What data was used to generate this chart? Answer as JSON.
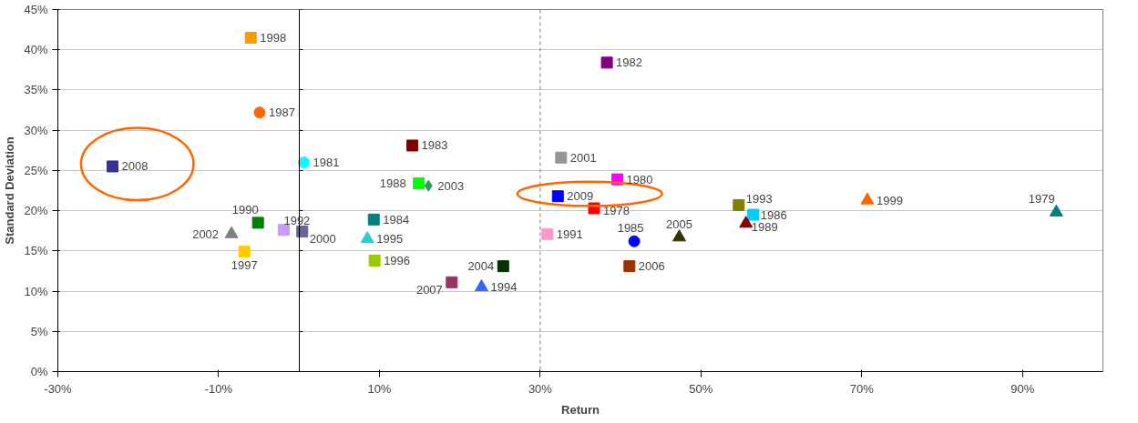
{
  "chart_data": {
    "type": "scatter",
    "xlabel": "Return",
    "ylabel": "Standard Deviation",
    "xlim": [
      -30,
      100
    ],
    "xticks": [
      {
        "value": -30,
        "label": "-30%"
      },
      {
        "value": -10,
        "label": "-10%"
      },
      {
        "value": 10,
        "label": "10%"
      },
      {
        "value": 30,
        "label": "30%"
      },
      {
        "value": 50,
        "label": "50%"
      },
      {
        "value": 70,
        "label": "70%"
      },
      {
        "value": 90,
        "label": "90%"
      }
    ],
    "ylim": [
      0,
      45
    ],
    "yticks": [
      {
        "value": 0,
        "label": "0%"
      },
      {
        "value": 5,
        "label": "5%"
      },
      {
        "value": 10,
        "label": "10%"
      },
      {
        "value": 15,
        "label": "15%"
      },
      {
        "value": 20,
        "label": "20%"
      },
      {
        "value": 25,
        "label": "25%"
      },
      {
        "value": 30,
        "label": "30%"
      },
      {
        "value": 35,
        "label": "35%"
      },
      {
        "value": 40,
        "label": "40%"
      },
      {
        "value": 45,
        "label": "45%"
      }
    ],
    "grid": "y",
    "ref_lines": [
      {
        "axis": "x",
        "value": 30,
        "color": "#808080",
        "line_style": "dashed"
      }
    ],
    "series": [
      {
        "name": "1998",
        "color": "#ff9900",
        "marker": "square",
        "x": [
          -6.0
        ],
        "values": [
          41.5
        ]
      },
      {
        "name": "1987",
        "color": "#ff6600",
        "marker": "circle",
        "x": [
          -4.9
        ],
        "values": [
          32.2
        ]
      },
      {
        "name": "2008",
        "color": "#333399",
        "marker": "square",
        "x": [
          -23.2
        ],
        "values": [
          25.5
        ]
      },
      {
        "name": "1981",
        "color": "#00ffff",
        "marker": "circle",
        "x": [
          0.6
        ],
        "values": [
          26.0
        ]
      },
      {
        "name": "1990",
        "color": "#008000",
        "marker": "square",
        "x": [
          -5.1
        ],
        "values": [
          18.5
        ]
      },
      {
        "name": "2002",
        "color": "#808080",
        "marker": "triangle",
        "x": [
          -8.4
        ],
        "values": [
          17.1
        ]
      },
      {
        "name": "1997",
        "color": "#ffcc00",
        "marker": "square",
        "x": [
          -6.8
        ],
        "values": [
          14.9
        ]
      },
      {
        "name": "1992",
        "color": "#cc99ff",
        "marker": "square",
        "x": [
          -1.9
        ],
        "values": [
          17.6
        ]
      },
      {
        "name": "2000",
        "color": "#666699",
        "marker": "square",
        "x": [
          0.4
        ],
        "values": [
          17.4
        ]
      },
      {
        "name": "1984",
        "color": "#008080",
        "marker": "square",
        "x": [
          9.3
        ],
        "values": [
          18.9
        ]
      },
      {
        "name": "1995",
        "color": "#33cccc",
        "marker": "triangle",
        "x": [
          8.5
        ],
        "values": [
          16.5
        ]
      },
      {
        "name": "1996",
        "color": "#99cc00",
        "marker": "square",
        "x": [
          9.4
        ],
        "values": [
          13.8
        ]
      },
      {
        "name": "1983",
        "color": "#800000",
        "marker": "square",
        "x": [
          14.1
        ],
        "values": [
          28.1
        ]
      },
      {
        "name": "1988",
        "color": "#00ff00",
        "marker": "square",
        "x": [
          14.9
        ],
        "values": [
          23.4
        ]
      },
      {
        "name": "2003",
        "color": "#339966",
        "marker": "diamond",
        "x": [
          16.1
        ],
        "values": [
          23.1
        ]
      },
      {
        "name": "2007",
        "color": "#993366",
        "marker": "square",
        "x": [
          19.0
        ],
        "values": [
          11.1
        ]
      },
      {
        "name": "1994",
        "color": "#3366ff",
        "marker": "triangle",
        "x": [
          22.7
        ],
        "values": [
          10.5
        ]
      },
      {
        "name": "2004",
        "color": "#003300",
        "marker": "square",
        "x": [
          25.4
        ],
        "values": [
          13.1
        ]
      },
      {
        "name": "1991",
        "color": "#ff99cc",
        "marker": "square",
        "x": [
          30.9
        ],
        "values": [
          17.1
        ]
      },
      {
        "name": "2001",
        "color": "#969696",
        "marker": "square",
        "x": [
          32.6
        ],
        "values": [
          26.6
        ]
      },
      {
        "name": "2009",
        "color": "#0000ff",
        "marker": "square",
        "x": [
          32.2
        ],
        "values": [
          21.8
        ]
      },
      {
        "name": "1982",
        "color": "#800080",
        "marker": "square",
        "x": [
          38.3
        ],
        "values": [
          38.4
        ]
      },
      {
        "name": "1980",
        "color": "#ff00ff",
        "marker": "square",
        "x": [
          39.6
        ],
        "values": [
          23.9
        ]
      },
      {
        "name": "1978",
        "color": "#ff0000",
        "marker": "square",
        "x": [
          36.7
        ],
        "values": [
          20.3
        ]
      },
      {
        "name": "1985",
        "color": "#0000ff",
        "marker": "circle",
        "x": [
          41.7
        ],
        "values": [
          16.2
        ]
      },
      {
        "name": "2006",
        "color": "#993300",
        "marker": "square",
        "x": [
          41.1
        ],
        "values": [
          13.1
        ]
      },
      {
        "name": "2005",
        "color": "#333300",
        "marker": "triangle",
        "x": [
          47.3
        ],
        "values": [
          16.7
        ]
      },
      {
        "name": "1993",
        "color": "#808000",
        "marker": "square",
        "x": [
          54.7
        ],
        "values": [
          20.7
        ]
      },
      {
        "name": "1986",
        "color": "#00ccff",
        "marker": "square",
        "x": [
          56.5
        ],
        "values": [
          19.5
        ]
      },
      {
        "name": "1989",
        "color": "#800000",
        "marker": "triangle",
        "x": [
          55.6
        ],
        "values": [
          18.4
        ]
      },
      {
        "name": "1999",
        "color": "#ff6600",
        "marker": "triangle",
        "x": [
          70.7
        ],
        "values": [
          21.3
        ]
      },
      {
        "name": "1979",
        "color": "#008080",
        "marker": "triangle",
        "x": [
          94.2
        ],
        "values": [
          19.8
        ]
      }
    ]
  }
}
